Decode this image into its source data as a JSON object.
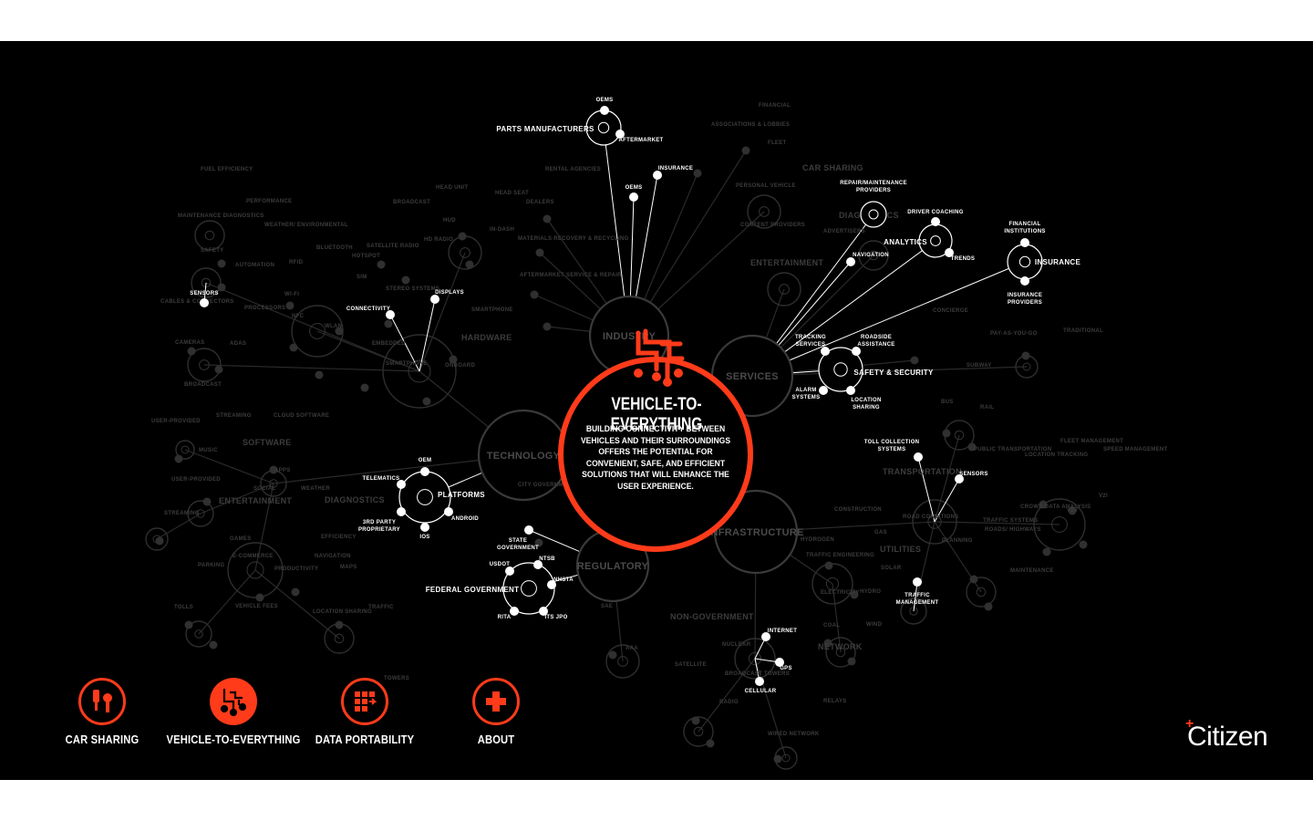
{
  "center": {
    "title": "VEHICLE-TO-EVERYTHING",
    "description": "BUILDING CONNECTIVITY BETWEEN VEHICLES AND THEIR SURROUNDINGS OFFERS THE POTENTIAL FOR CONVENIENT, SAFE, AND EFFICIENT SOLUTIONS THAT WILL ENHANCE THE USER EXPERIENCE.",
    "accent": "#ff3b1a"
  },
  "hubs": {
    "industry": "INDUSTRY",
    "services": "SERVICES",
    "technology": "TECHNOLOGY",
    "regulatory": "REGULATORY",
    "infrastructure": "INFRASTRUCTURE"
  },
  "highlight_nodes": [
    {
      "id": "parts",
      "label": "PARTS MANUFACTURERS",
      "children": [
        "OEMS",
        "AFTERMARKET"
      ]
    },
    {
      "id": "industry-oems",
      "label": "OEMS"
    },
    {
      "id": "industry-insurance",
      "label": "INSURANCE"
    },
    {
      "id": "repair",
      "label": "REPAIR/MAINTENANCE PROVIDERS"
    },
    {
      "id": "analytics",
      "label": "ANALYTICS",
      "children": [
        "DRIVER COACHING",
        "TRENDS"
      ]
    },
    {
      "id": "navigation",
      "label": "NAVIGATION"
    },
    {
      "id": "insurance",
      "label": "INSURANCE",
      "children": [
        "FINANCIAL INSTITUTIONS",
        "INSURANCE PROVIDERS"
      ]
    },
    {
      "id": "safety",
      "label": "SAFETY & SECURITY",
      "children": [
        "TRACKING SERVICES",
        "ROADSIDE ASSISTANCE",
        "ALARM SYSTEMS",
        "LOCATION SHARING"
      ]
    },
    {
      "id": "sensors-tech",
      "label": "SENSORS"
    },
    {
      "id": "connectivity",
      "label": "CONNECTIVITY"
    },
    {
      "id": "displays",
      "label": "DISPLAYS"
    },
    {
      "id": "platforms",
      "label": "PLATFORMS",
      "children": [
        "OEM",
        "TELEMATICS",
        "3RD PARTY PROPRIETARY",
        "IOS",
        "ANDROID"
      ]
    },
    {
      "id": "federal",
      "label": "FEDERAL GOVERNMENT",
      "children": [
        "USDOT",
        "NTSB",
        "NHSTA",
        "RITA",
        "ITS JPO"
      ]
    },
    {
      "id": "state",
      "label": "STATE GOVERNMENT"
    },
    {
      "id": "toll",
      "label": "TOLL COLLECTION SYSTEMS"
    },
    {
      "id": "sensors-infra",
      "label": "SENSORS"
    },
    {
      "id": "traffic-mgmt",
      "label": "TRAFFIC MANAGEMENT"
    },
    {
      "id": "network",
      "label": "NETWORK",
      "children": [
        "INTERNET",
        "GPS",
        "CELLULAR"
      ]
    }
  ],
  "dim_labels": [
    "FINANCIAL",
    "ASSOCIATIONS & LOBBIES",
    "FLEET",
    "CAR SHARING",
    "PERSONAL VEHICLE",
    "RENTAL AGENCIES",
    "DEALERS",
    "MATERIALS RECOVERY & RECYCLING",
    "AFTERMARKET SERVICE & REPAIR",
    "CONTENT PROVIDERS",
    "ADVERTISERS",
    "DIAGNOSTICS",
    "ENTERTAINMENT",
    "CONCIERGE",
    "PAY-AS-YOU-GO",
    "TRADITIONAL",
    "HEAD UNIT",
    "HEAD SEAT",
    "HUD",
    "IN-DASH",
    "BROADCAST",
    "HD RADIO",
    "SATELLITE RADIO",
    "BLUETOOTH",
    "HOTSPOT",
    "RFID",
    "SIM",
    "WI-FI",
    "WLAN",
    "NFC",
    "STEREO SYSTEMS",
    "SMARTPHONE",
    "EMBEDDED",
    "SMARTPHONE",
    "ONBOARD",
    "HARDWARE",
    "FUEL EFFICIENCY",
    "PERFORMANCE",
    "MAINTENANCE DIAGNOSTICS",
    "WEATHER/ ENVIRONMENTAL",
    "SAFETY",
    "AUTOMATION",
    "CABLES & CONNECTORS",
    "PROCESSORS",
    "CAMERAS",
    "ADAS",
    "BROADCAST",
    "USER-PROVIDED",
    "STREAMING",
    "CLOUD SOFTWARE",
    "SOFTWARE",
    "MUSIC",
    "APPS",
    "USER-PROVIDED",
    "STREAMING",
    "ENTERTAINMENT",
    "SOCIAL",
    "WEATHER",
    "DIAGNOSTICS",
    "GAMES",
    "EFFICIENCY",
    "E-COMMERCE",
    "NAVIGATION",
    "PARKING",
    "PRODUCTIVITY",
    "MAPS",
    "TOLLS",
    "VEHICLE FEES",
    "LOCATION SHARING",
    "TRAFFIC",
    "CITY GOVERNMENT",
    "NON-GOVERNMENT",
    "SAE",
    "AAA",
    "SUBWAY",
    "BUS",
    "RAIL",
    "PUBLIC TRANSPORTATION",
    "TRANSPORTATION",
    "FLEET MANAGEMENT",
    "SPEED MANAGEMENT",
    "LOCATION TRACKING",
    "CROWD DATA ANALYSIS",
    "V2V",
    "V2I",
    "ROAD CONDITIONS",
    "TRAFFIC SYSTEMS",
    "ROADS/ HIGHWAYS",
    "PLANNING",
    "MAINTENANCE",
    "CONSTRUCTION",
    "GAS",
    "HYDROGEN",
    "UTILITIES",
    "TRAFFIC ENGINEERING",
    "SOLAR",
    "ELECTRICITY",
    "HYDRO",
    "COAL",
    "WIND",
    "NUCLEAR",
    "NETWORK",
    "SATELLITE",
    "BROADCAST TOWERS",
    "RADIO",
    "RELAYS",
    "WIRED NETWORK",
    "TOWERS"
  ],
  "nav": [
    {
      "label": "CAR SHARING",
      "icon": "car-key-icon",
      "active": false
    },
    {
      "label": "VEHICLE-TO-EVERYTHING",
      "icon": "v2x-network-icon",
      "active": true
    },
    {
      "label": "DATA PORTABILITY",
      "icon": "data-grid-icon",
      "active": false
    },
    {
      "label": "ABOUT",
      "icon": "plus-icon",
      "active": false
    }
  ],
  "brand": {
    "name": "Citizen",
    "mark": "+"
  }
}
